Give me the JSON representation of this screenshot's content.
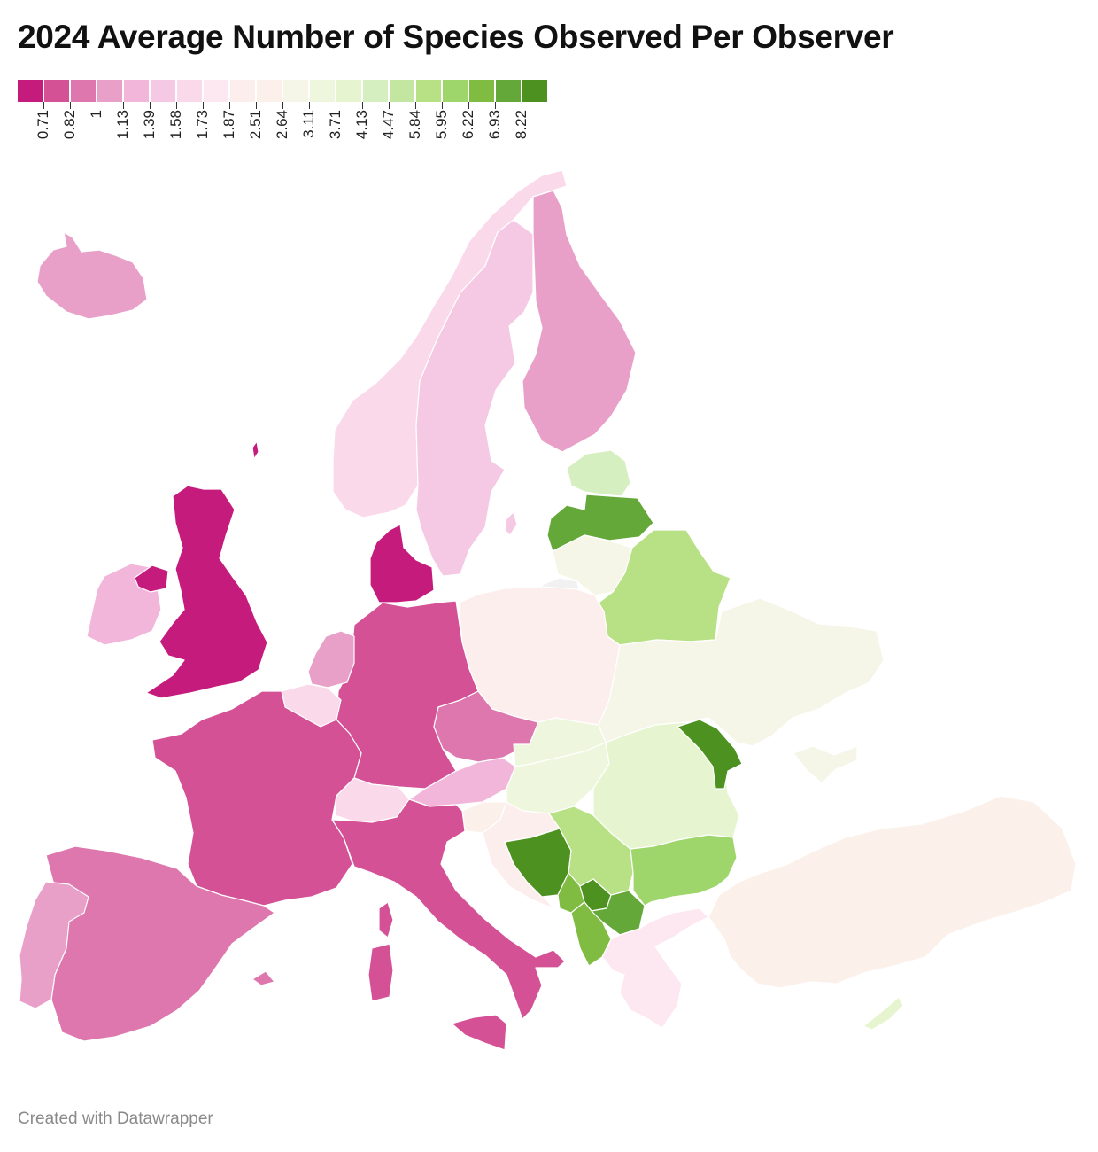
{
  "title": "2024 Average Number of Species Observed Per Observer",
  "footer": "Created with Datawrapper",
  "legend": {
    "colors": [
      "#c51b7d",
      "#d45196",
      "#de77ae",
      "#e9a0c8",
      "#f1b6da",
      "#f5c9e4",
      "#fad9ea",
      "#fde8f1",
      "#fdeeee",
      "#fbf1ea",
      "#f5f6e8",
      "#eef7dd",
      "#e6f5d0",
      "#d6efc0",
      "#c3e6a0",
      "#b8e186",
      "#9fd66b",
      "#7fbc41",
      "#65a83a",
      "#4d9221"
    ],
    "labels": [
      "0.71",
      "0.82",
      "1",
      "1.13",
      "1.39",
      "1.58",
      "1.73",
      "1.87",
      "2.51",
      "2.64",
      "3.11",
      "3.71",
      "4.13",
      "4.47",
      "5.84",
      "5.95",
      "6.22",
      "6.93",
      "8.22"
    ]
  },
  "regions": [
    {
      "name": "iceland",
      "color": "#e9a0c8"
    },
    {
      "name": "ireland",
      "color": "#f1b6da"
    },
    {
      "name": "united-kingdom",
      "color": "#c51b7d"
    },
    {
      "name": "northern-ireland",
      "color": "#c51b7d"
    },
    {
      "name": "norway",
      "color": "#fad9ea"
    },
    {
      "name": "sweden",
      "color": "#f5c9e4"
    },
    {
      "name": "finland",
      "color": "#e9a0c8"
    },
    {
      "name": "denmark",
      "color": "#c51b7d"
    },
    {
      "name": "netherlands",
      "color": "#e9a0c8"
    },
    {
      "name": "belgium",
      "color": "#fad9ea"
    },
    {
      "name": "germany",
      "color": "#d45196"
    },
    {
      "name": "france",
      "color": "#d45196"
    },
    {
      "name": "spain",
      "color": "#de77ae"
    },
    {
      "name": "portugal",
      "color": "#e9a0c8"
    },
    {
      "name": "switzerland",
      "color": "#fad9ea"
    },
    {
      "name": "italy",
      "color": "#d45196"
    },
    {
      "name": "austria",
      "color": "#f1b6da"
    },
    {
      "name": "czechia",
      "color": "#de77ae"
    },
    {
      "name": "poland",
      "color": "#fdeeee"
    },
    {
      "name": "estonia",
      "color": "#d6efc0"
    },
    {
      "name": "latvia",
      "color": "#65a83a"
    },
    {
      "name": "lithuania",
      "color": "#f5f6e8"
    },
    {
      "name": "belarus",
      "color": "#b8e186"
    },
    {
      "name": "ukraine",
      "color": "#f5f6e8"
    },
    {
      "name": "moldova",
      "color": "#4d9221"
    },
    {
      "name": "slovakia",
      "color": "#eef7dd"
    },
    {
      "name": "hungary",
      "color": "#eef7dd"
    },
    {
      "name": "romania",
      "color": "#e6f5d0"
    },
    {
      "name": "slovenia",
      "color": "#fbf1ea"
    },
    {
      "name": "croatia",
      "color": "#fdeeee"
    },
    {
      "name": "bosnia",
      "color": "#4d9221"
    },
    {
      "name": "serbia",
      "color": "#b8e186"
    },
    {
      "name": "montenegro",
      "color": "#7fbc41"
    },
    {
      "name": "kosovo",
      "color": "#4d9221"
    },
    {
      "name": "north-macedonia",
      "color": "#65a83a"
    },
    {
      "name": "albania",
      "color": "#7fbc41"
    },
    {
      "name": "bulgaria",
      "color": "#9fd66b"
    },
    {
      "name": "greece",
      "color": "#fde8f1"
    },
    {
      "name": "turkey",
      "color": "#fbf1ea"
    },
    {
      "name": "cyprus",
      "color": "#e6f5d0"
    },
    {
      "name": "crimea",
      "color": "#f5f6e8"
    },
    {
      "name": "kaliningrad",
      "color": "#f1f1f1"
    },
    {
      "name": "corsica",
      "color": "#d45196"
    },
    {
      "name": "sardinia",
      "color": "#d45196"
    },
    {
      "name": "sicily",
      "color": "#d45196"
    },
    {
      "name": "balearics",
      "color": "#de77ae"
    },
    {
      "name": "gotland",
      "color": "#f5c9e4"
    },
    {
      "name": "faroe",
      "color": "#c51b7d"
    }
  ]
}
